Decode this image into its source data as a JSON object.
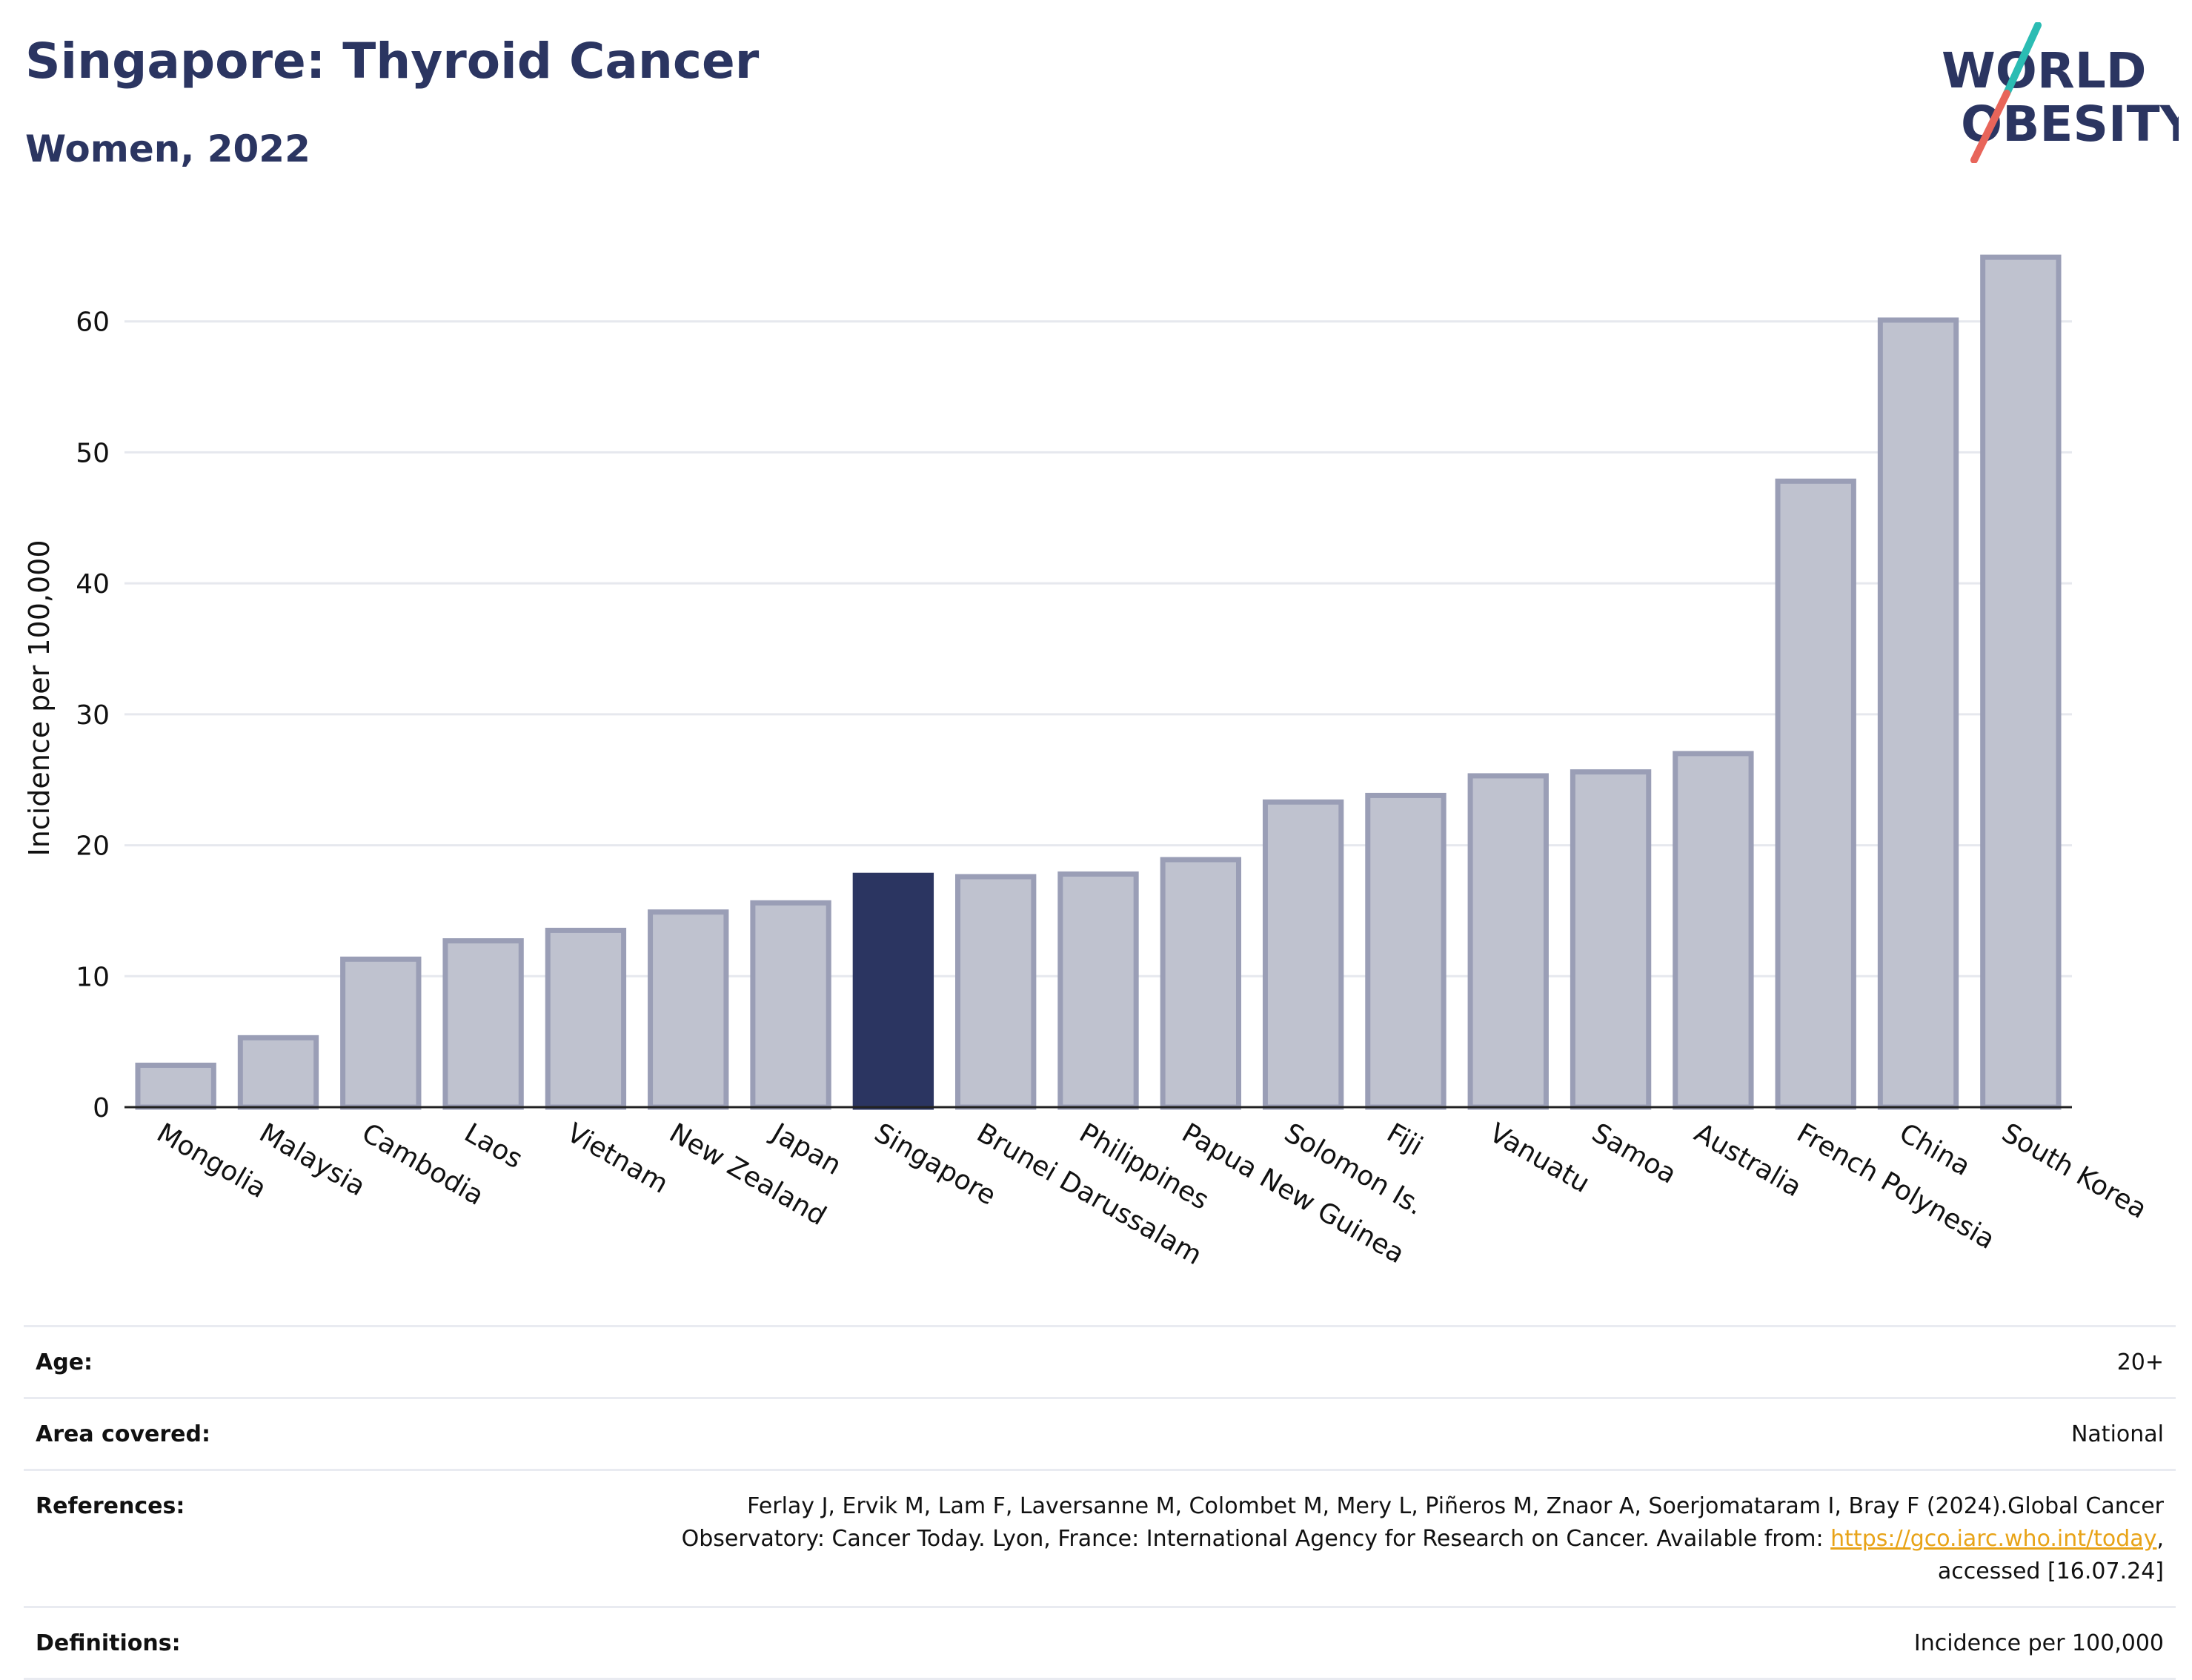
{
  "header": {
    "title": "Singapore: Thyroid Cancer",
    "subtitle": "Women, 2022"
  },
  "logo": {
    "line1": "WORLD",
    "line2": "OBESITY",
    "colors": {
      "text": "#2b3561",
      "slash_top": "#2bbcb3",
      "slash_bottom": "#e8655a"
    }
  },
  "chart_data": {
    "type": "bar",
    "ylabel": "Incidence per 100,000",
    "xlabel": "",
    "ylim": [
      0,
      67
    ],
    "yticks": [
      0,
      10,
      20,
      30,
      40,
      50,
      60
    ],
    "grid": true,
    "highlight": "Singapore",
    "colors": {
      "bar": "#bfc2cf",
      "bar_stroke": "#9a9eb6",
      "highlight": "#2b3561",
      "grid": "#e6e8ee",
      "axis": "#222222"
    },
    "categories": [
      "Mongolia",
      "Malaysia",
      "Cambodia",
      "Laos",
      "Vietnam",
      "New Zealand",
      "Japan",
      "Singapore",
      "Brunei Darussalam",
      "Philippines",
      "Papua New Guinea",
      "Solomon Is.",
      "Fiji",
      "Vanuatu",
      "Samoa",
      "Australia",
      "French Polynesia",
      "China",
      "South Korea"
    ],
    "values": [
      3.2,
      5.3,
      11.3,
      12.7,
      13.5,
      14.9,
      15.6,
      17.7,
      17.6,
      17.8,
      18.9,
      23.3,
      23.8,
      25.3,
      25.6,
      27.0,
      47.8,
      60.1,
      64.9
    ]
  },
  "meta": {
    "rows": [
      {
        "label": "Age:",
        "value": "20+"
      },
      {
        "label": "Area covered:",
        "value": "National"
      },
      {
        "label": "References:",
        "value_before": "Ferlay J, Ervik M, Lam F, Laversanne M, Colombet M, Mery L, Piñeros M, Znaor A, Soerjomataram I, Bray F (2024).Global Cancer Observatory: Cancer Today. Lyon, France: International Agency for Research on Cancer. Available from: ",
        "link": "https://gco.iarc.who.int/today",
        "value_after": ", accessed [16.07.24]"
      },
      {
        "label": "Definitions:",
        "value": "Incidence per 100,000"
      }
    ]
  }
}
